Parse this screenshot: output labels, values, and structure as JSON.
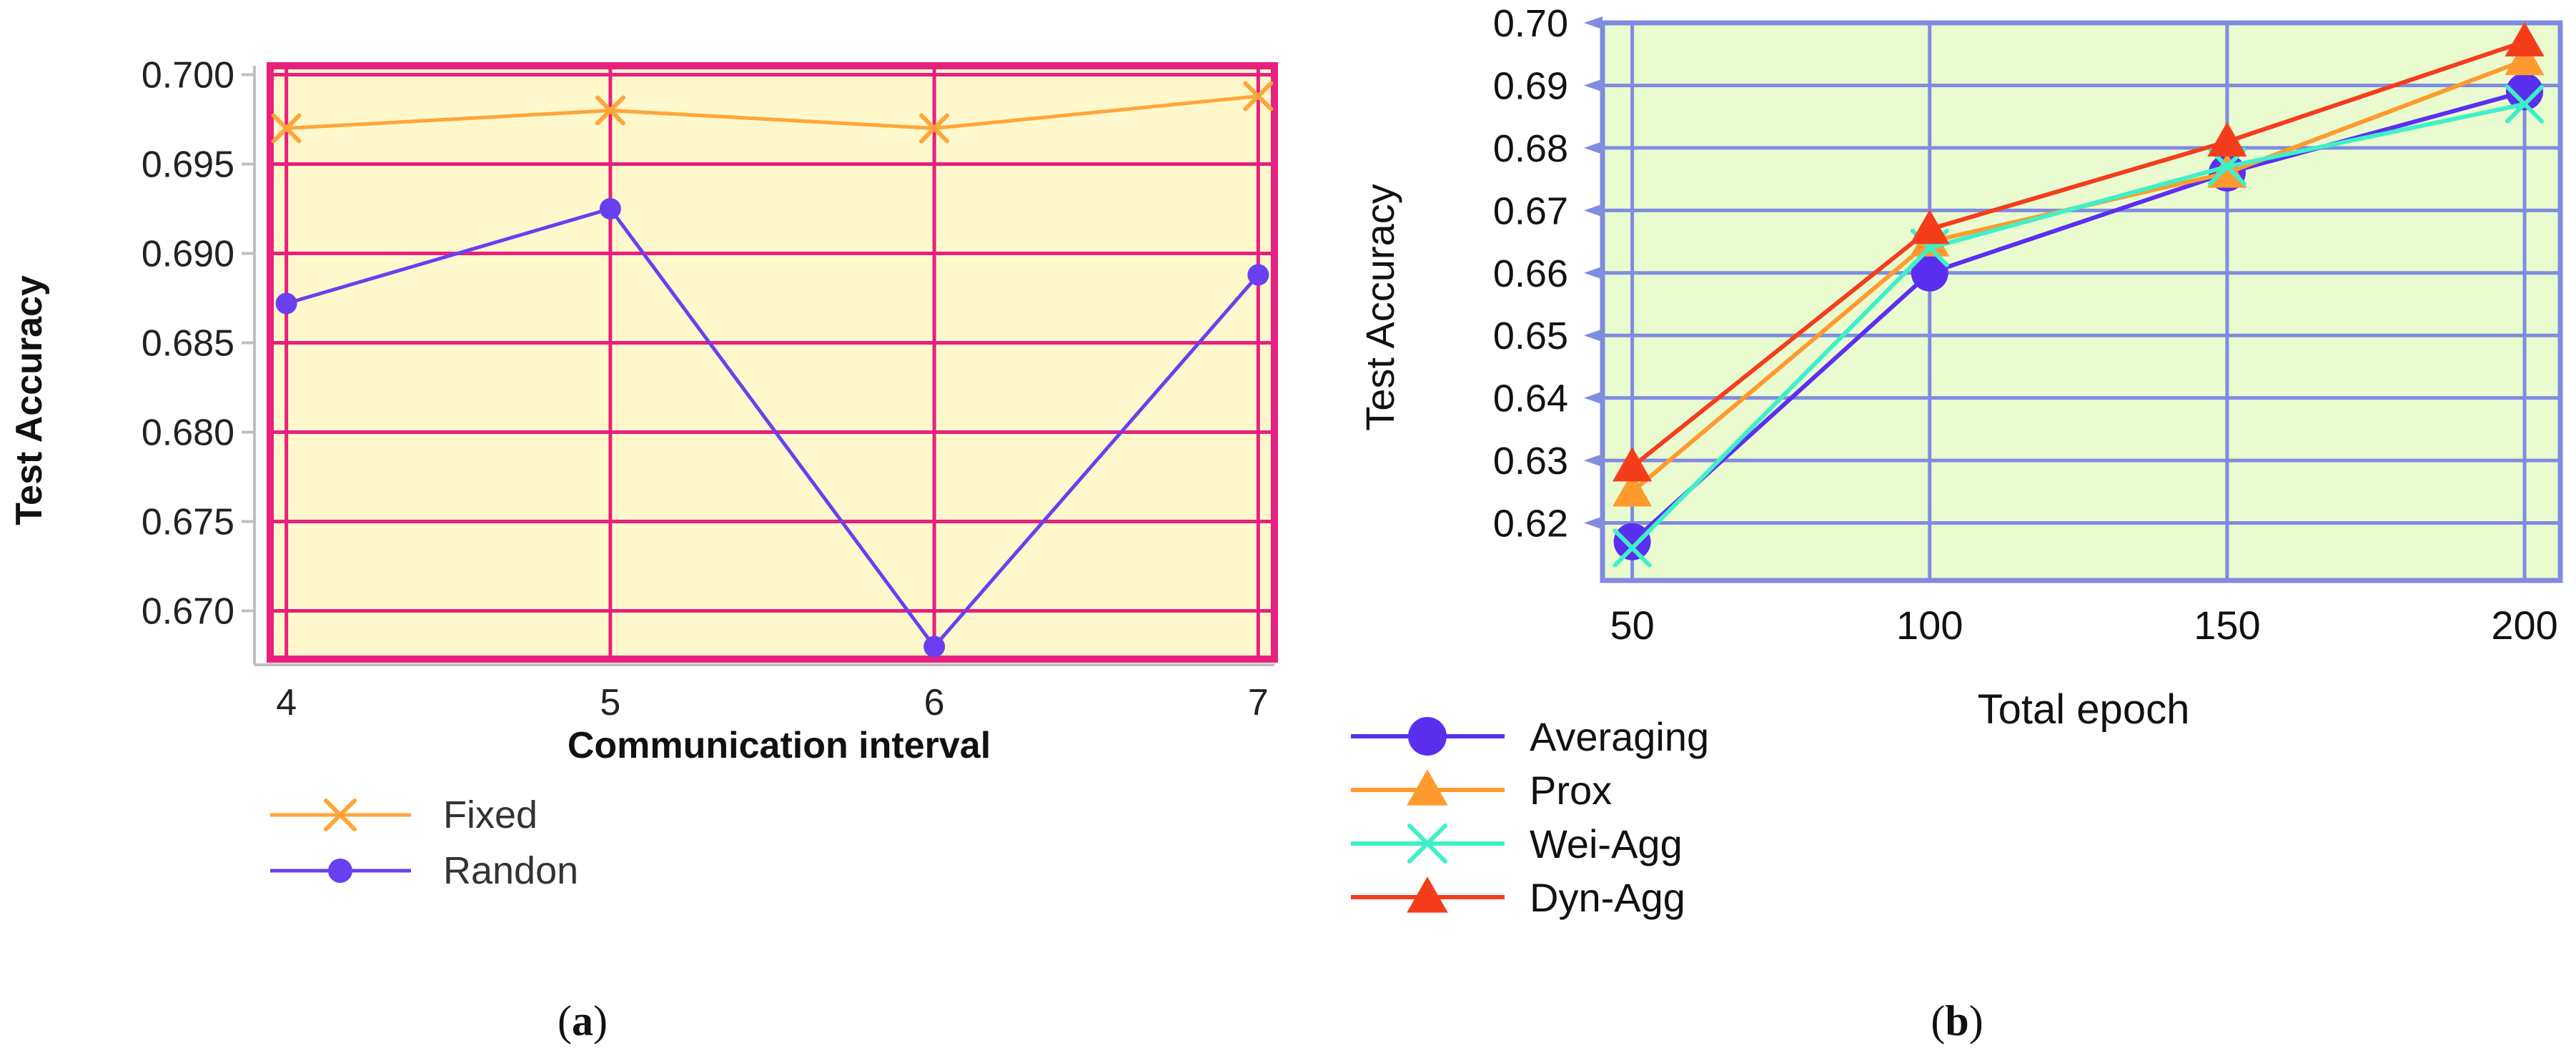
{
  "chart_data": [
    {
      "type": "line",
      "panel_label": "a",
      "title": "",
      "xlabel": "Communication interval",
      "ylabel": "Test Accuracy",
      "categories": [
        "4",
        "5",
        "6",
        "7"
      ],
      "x": [
        4,
        5,
        6,
        7
      ],
      "xlim": [
        3.95,
        7.05
      ],
      "ylim": [
        0.6673,
        0.7005
      ],
      "yticks": [
        0.67,
        0.675,
        0.68,
        0.685,
        0.69,
        0.695,
        0.7
      ],
      "ytick_labels": [
        "0.670",
        "0.675",
        "0.680",
        "0.685",
        "0.690",
        "0.695",
        "0.700"
      ],
      "grid": true,
      "legend_position": "bottom-left",
      "colors": {
        "plot_background": "#fff8cc",
        "grid": "#e8207f",
        "frame": "#e8207f"
      },
      "series": [
        {
          "name": "Fixed",
          "marker": "x",
          "color": "#ffa53a",
          "values": [
            0.697,
            0.698,
            0.697,
            0.6988
          ]
        },
        {
          "name": "Randon",
          "marker": "circle",
          "color": "#6a3ff0",
          "values": [
            0.6872,
            0.6925,
            0.668,
            0.6888
          ]
        }
      ]
    },
    {
      "type": "line",
      "panel_label": "b",
      "title": "",
      "xlabel": "Total epoch",
      "ylabel": "Test Accuracy",
      "categories": [
        "50",
        "100",
        "150",
        "200"
      ],
      "x": [
        50,
        100,
        150,
        200
      ],
      "xlim": [
        45,
        206
      ],
      "ylim": [
        0.6108,
        0.7
      ],
      "yticks": [
        0.62,
        0.63,
        0.64,
        0.65,
        0.66,
        0.67,
        0.68,
        0.69,
        0.7
      ],
      "ytick_labels": [
        "0.62",
        "0.63",
        "0.64",
        "0.65",
        "0.66",
        "0.67",
        "0.68",
        "0.69",
        "0.70"
      ],
      "grid": true,
      "legend_position": "bottom-left",
      "colors": {
        "plot_background": "#eafbd0",
        "grid": "#7f8ce0",
        "frame": "#7f8ce0"
      },
      "series": [
        {
          "name": "Averaging",
          "marker": "circle",
          "color": "#5b2ff0",
          "values": [
            0.617,
            0.66,
            0.676,
            0.689
          ]
        },
        {
          "name": "Prox",
          "marker": "triangle",
          "color": "#ff9a2e",
          "values": [
            0.625,
            0.665,
            0.676,
            0.694
          ]
        },
        {
          "name": "Wei-Agg",
          "marker": "x",
          "color": "#3ef0c8",
          "values": [
            0.616,
            0.664,
            0.677,
            0.687
          ]
        },
        {
          "name": "Dyn-Agg",
          "marker": "triangle",
          "color": "#f53d1c",
          "values": [
            0.629,
            0.667,
            0.681,
            0.697
          ]
        }
      ]
    }
  ]
}
